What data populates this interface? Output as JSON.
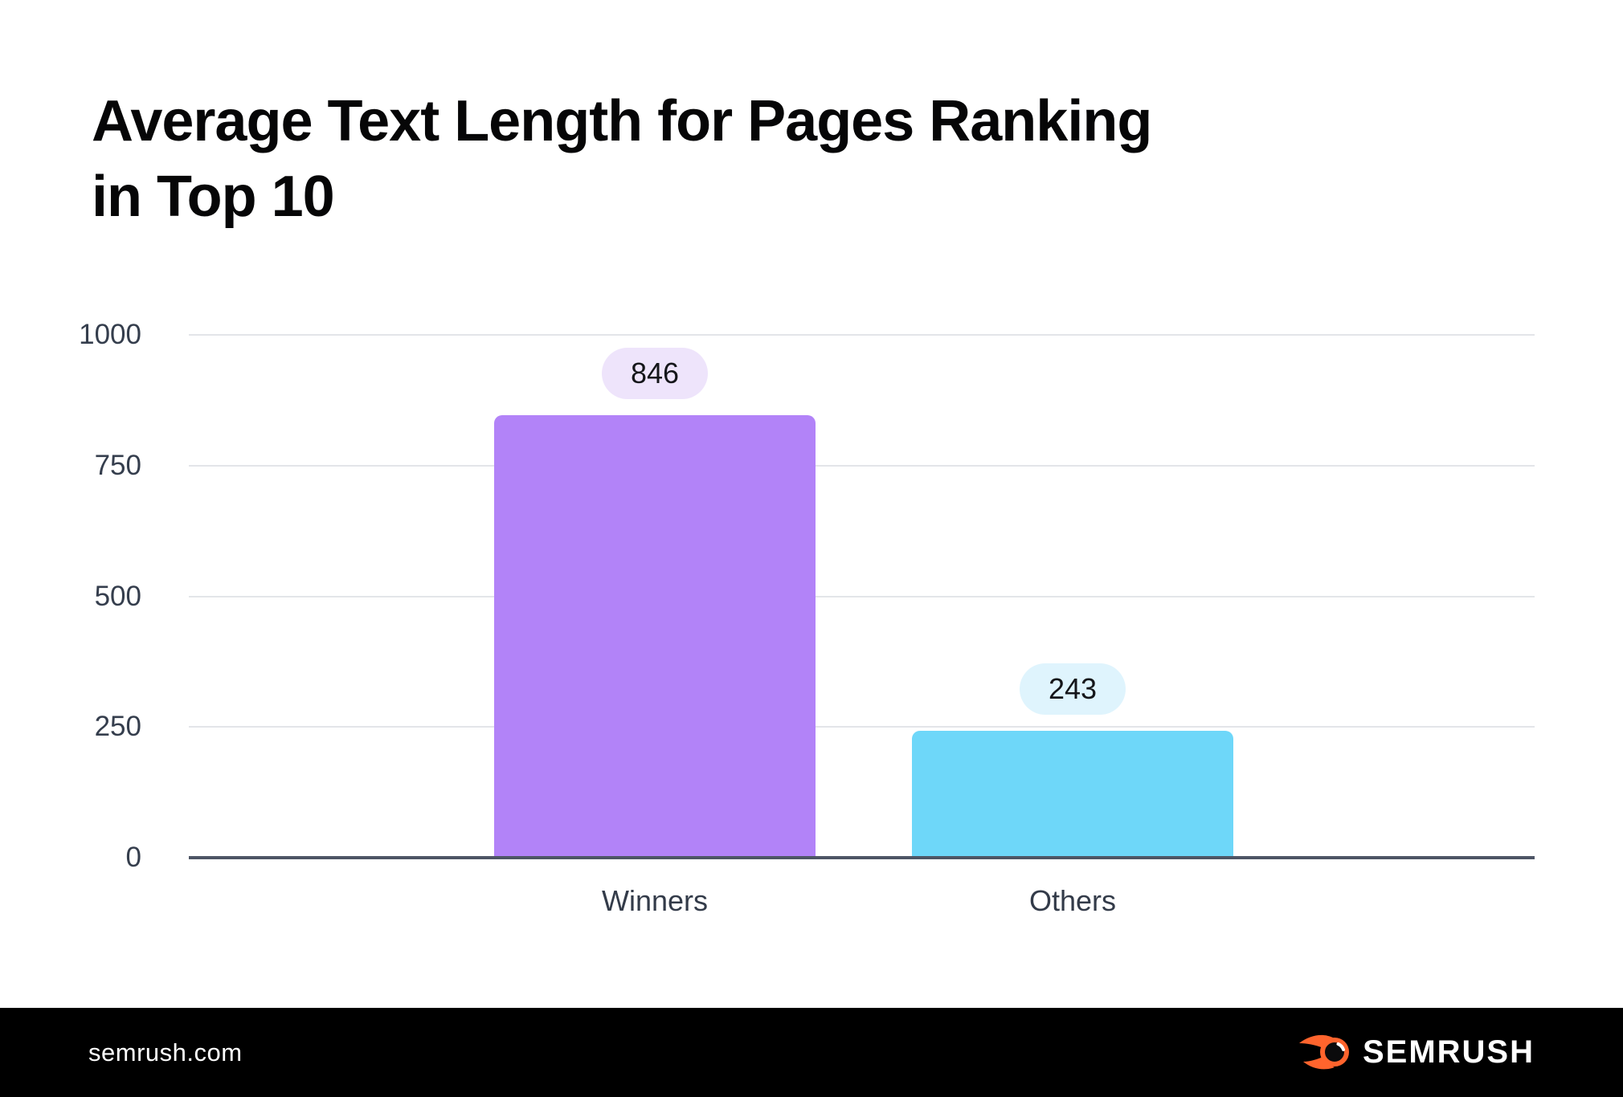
{
  "title_lines": [
    "Average Text Length for Pages Ranking",
    "in Top 10"
  ],
  "chart_data": {
    "type": "bar",
    "title": "Average Text Length for Pages Ranking in Top 10",
    "categories": [
      "Winners",
      "Others"
    ],
    "values": [
      846,
      243
    ],
    "xlabel": "",
    "ylabel": "",
    "ylim": [
      0,
      1000
    ],
    "yticks": [
      0,
      250,
      500,
      750,
      1000
    ],
    "grid": true,
    "legend": false,
    "bar_colors": [
      "#B283F8",
      "#6ED7F9"
    ],
    "value_pill_colors": [
      "#EEE4FB",
      "#DFF4FD"
    ]
  },
  "colors": {
    "background": "#FFFFFF",
    "title": "#060607",
    "axis_label": "#353E4D",
    "gridline": "#E3E5E9",
    "zero_line": "#4D5565",
    "footer_background": "#000000",
    "logo_orange": "#FF642D"
  },
  "footer": {
    "url": "semrush.com",
    "logo_icon": "semrush-flame-icon",
    "logo_text": "SEMRUSH"
  }
}
